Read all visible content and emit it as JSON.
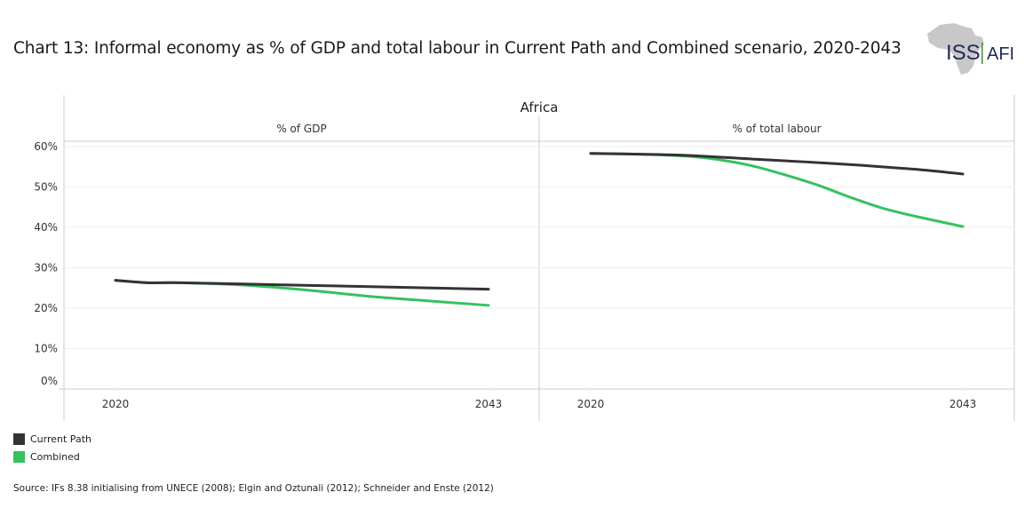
{
  "title": "Chart 13: Informal economy as % of GDP and total labour in Current Path and Combined scenario, 2020-2043",
  "logo": {
    "left_text": "ISS",
    "right_text": "AFI",
    "icon": "africa-map-icon"
  },
  "colors": {
    "current_path": "#333333",
    "combined": "#36c160",
    "grid": "#eeeeee",
    "frame": "#cccccc"
  },
  "legend": [
    {
      "label": "Current Path",
      "color": "#333333"
    },
    {
      "label": "Combined",
      "color": "#36c160"
    }
  ],
  "source": "Source: IFs 8.38 initialising from UNECE (2008); Elgin and Oztunali (2012); Schneider and Enste (2012)",
  "chart_data": {
    "type": "line",
    "region": "Africa",
    "y_ticks": [
      "0%",
      "10%",
      "20%",
      "30%",
      "40%",
      "50%",
      "60%"
    ],
    "y_tick_values": [
      0,
      10,
      20,
      30,
      40,
      50,
      60
    ],
    "ylim": [
      0,
      60
    ],
    "x_ticks": [
      "2020",
      "2043"
    ],
    "xlim": [
      2020,
      2043
    ],
    "grid": true,
    "legend_position": "bottom-left",
    "panels": [
      {
        "title": "% of GDP",
        "series": [
          {
            "name": "Current Path",
            "x": [
              2020,
              2022,
              2024,
              2030,
              2036,
              2043
            ],
            "y": [
              26.9,
              26.3,
              26.3,
              25.8,
              25.3,
              24.7
            ]
          },
          {
            "name": "Combined",
            "x": [
              2020,
              2022,
              2024,
              2027,
              2030,
              2033,
              2036,
              2039,
              2043
            ],
            "y": [
              26.9,
              26.3,
              26.3,
              25.9,
              25.1,
              24.0,
              22.8,
              21.9,
              20.7
            ]
          }
        ]
      },
      {
        "title": "% of total labour",
        "series": [
          {
            "name": "Current Path",
            "x": [
              2020,
              2023,
              2026,
              2030,
              2035,
              2040,
              2043
            ],
            "y": [
              58.3,
              58.1,
              57.8,
              56.9,
              55.8,
              54.4,
              53.2
            ]
          },
          {
            "name": "Combined",
            "x": [
              2020,
              2023,
              2026,
              2028,
              2030,
              2032,
              2034,
              2036,
              2038,
              2040,
              2043
            ],
            "y": [
              58.3,
              58.1,
              57.6,
              56.7,
              55.2,
              53.0,
              50.5,
              47.5,
              44.8,
              42.8,
              40.2
            ]
          }
        ]
      }
    ]
  }
}
